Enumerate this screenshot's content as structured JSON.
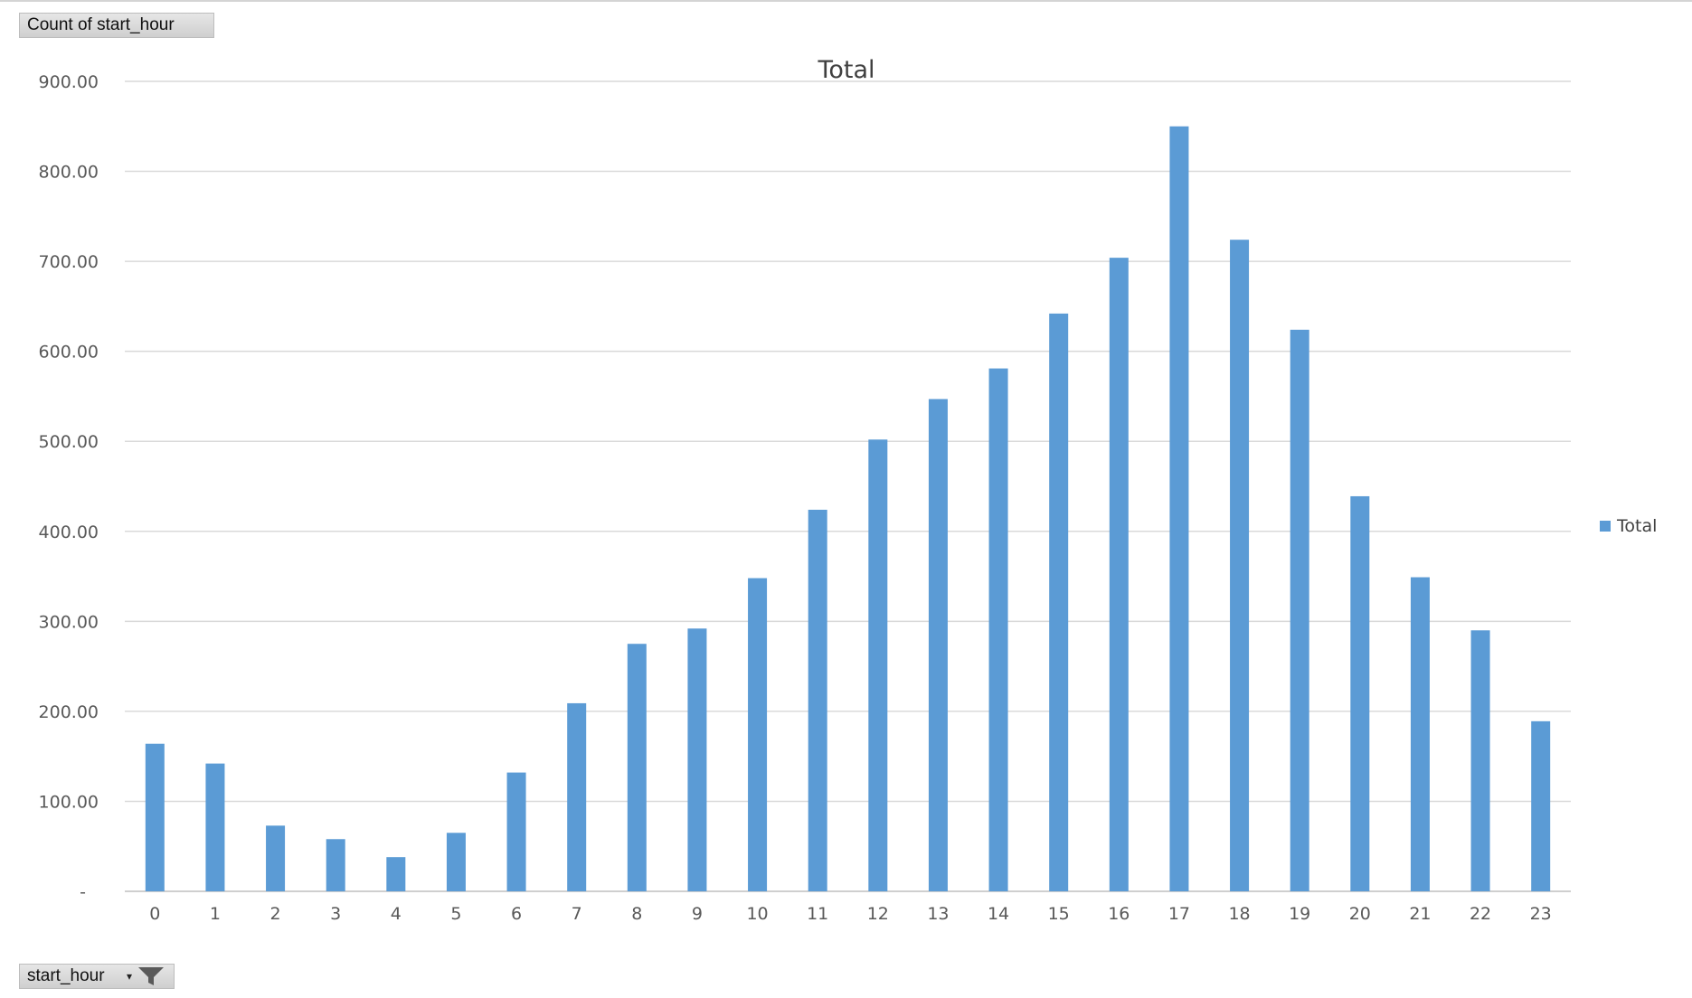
{
  "pivot": {
    "value_field_label": "Count of start_hour",
    "axis_field_label": "start_hour"
  },
  "icons": {
    "dropdown": "chevron-down-icon",
    "filter": "filter-icon"
  },
  "colors": {
    "bar": "#5b9bd5",
    "gridline": "#d9d9d9"
  },
  "chart_data": {
    "type": "bar",
    "title": "Total",
    "xlabel": "",
    "ylabel": "",
    "categories": [
      "0",
      "1",
      "2",
      "3",
      "4",
      "5",
      "6",
      "7",
      "8",
      "9",
      "10",
      "11",
      "12",
      "13",
      "14",
      "15",
      "16",
      "17",
      "18",
      "19",
      "20",
      "21",
      "22",
      "23"
    ],
    "series": [
      {
        "name": "Total",
        "values": [
          164,
          142,
          73,
          58,
          38,
          65,
          132,
          209,
          275,
          292,
          348,
          424,
          502,
          547,
          581,
          642,
          704,
          850,
          724,
          624,
          439,
          349,
          290,
          189
        ]
      }
    ],
    "ylim": [
      0,
      900
    ],
    "yticks": [
      {
        "value": 0,
        "label": "-"
      },
      {
        "value": 100,
        "label": "100.00"
      },
      {
        "value": 200,
        "label": "200.00"
      },
      {
        "value": 300,
        "label": "300.00"
      },
      {
        "value": 400,
        "label": "400.00"
      },
      {
        "value": 500,
        "label": "500.00"
      },
      {
        "value": 600,
        "label": "600.00"
      },
      {
        "value": 700,
        "label": "700.00"
      },
      {
        "value": 800,
        "label": "800.00"
      },
      {
        "value": 900,
        "label": "900.00"
      }
    ],
    "grid": true,
    "legend": "right"
  }
}
